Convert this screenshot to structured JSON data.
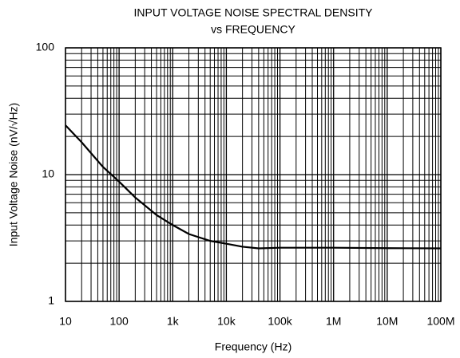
{
  "chart_data": {
    "type": "line",
    "title": "INPUT VOLTAGE NOISE SPECTRAL DENSITY",
    "subtitle": "vs FREQUENCY",
    "x_label": "Frequency (Hz)",
    "y_label": "Input Voltage Noise (nV/√Hz)",
    "x_log": true,
    "y_log": true,
    "grid": true,
    "xlim": [
      10,
      100000000
    ],
    "ylim": [
      1,
      100
    ],
    "xticks": [
      10,
      100,
      {
        "value": 1000,
        "label": "1k"
      },
      {
        "value": 10000,
        "label": "10k"
      },
      {
        "value": 100000,
        "label": "100k"
      },
      {
        "value": 1000000,
        "label": "1M"
      },
      {
        "value": 10000000,
        "label": "10M"
      },
      {
        "value": 100000000,
        "label": "100M"
      }
    ],
    "xminorticks": [
      20,
      30,
      40,
      50,
      60,
      70,
      80,
      90,
      200,
      300,
      400,
      500,
      600,
      700,
      800,
      900,
      2000,
      3000,
      4000,
      5000,
      6000,
      7000,
      8000,
      9000,
      20000,
      30000,
      40000,
      50000,
      60000,
      70000,
      80000,
      90000,
      200000,
      300000,
      400000,
      500000,
      600000,
      700000,
      800000,
      900000,
      2000000,
      3000000,
      4000000,
      5000000,
      6000000,
      7000000,
      8000000,
      9000000,
      20000000,
      30000000,
      40000000,
      50000000,
      60000000,
      70000000,
      80000000,
      90000000
    ],
    "yticks": [
      1,
      10,
      100
    ],
    "yminorticks": [
      2,
      3,
      4,
      5,
      6,
      7,
      8,
      9,
      20,
      30,
      40,
      50,
      60,
      70,
      80,
      90
    ],
    "x": [
      10,
      20,
      50,
      100,
      200,
      500,
      1000,
      2000,
      5000,
      10000,
      20000,
      40000,
      100000,
      1000000,
      10000000,
      100000000
    ],
    "series": [
      {
        "color": "#000000",
        "values": [
          24.5,
          18,
          11.5,
          8.8,
          6.6,
          4.8,
          4.0,
          3.4,
          3.0,
          2.85,
          2.7,
          2.62,
          2.65,
          2.65,
          2.63,
          2.62
        ]
      }
    ]
  }
}
